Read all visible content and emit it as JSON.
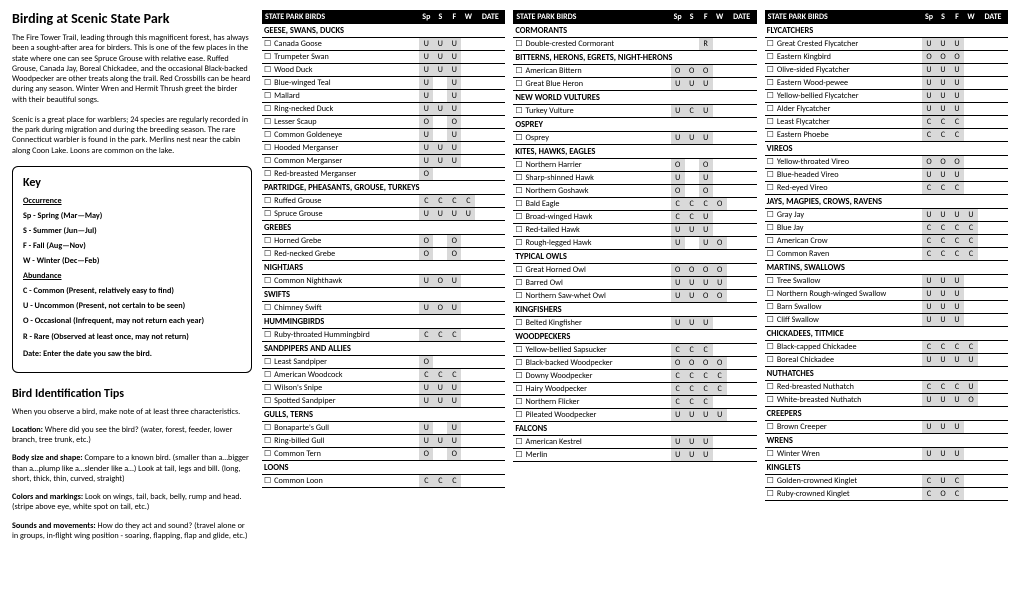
{
  "title": "Birding at Scenic State Park",
  "intro1": "The Fire Tower Trail, leading through this magnificent forest, has always been a sought-after area for birders. This is one of the few places in the state where one can see Spruce Grouse with relative ease. Ruffed Grouse, Canada Jay, Boreal Chickadee, and the occasional Black-backed Woodpecker are other treats along the trail. Red Crossbills can be heard during any season. Winter Wren and Hermit Thrush greet the birder with their beautiful songs.",
  "intro2": "Scenic is a great place for warblers; 24 species are regularly recorded in the park during migration and during the breeding season. The rare Connecticut warbler is found in the park. Merlins nest near the cabin along Coon Lake. Loons are common on the lake.",
  "key": {
    "title": "Key",
    "occ_h": "Occurrence",
    "occ": [
      "Sp - Spring (Mar—May)",
      "S  - Summer (Jun—Jul)",
      "F  - Fall (Aug—Nov)",
      "W - Winter (Dec—Feb)"
    ],
    "ab_h": "Abundance",
    "ab": [
      "C - Common (Present, relatively easy to find)",
      "U - Uncommon (Present, not certain to be seen)",
      "O - Occasional (Infrequent, may not return each year)",
      "R - Rare (Observed at least once, may not return)"
    ],
    "date": "Date: Enter the date you saw the bird."
  },
  "tips": {
    "title": "Bird Identification Tips",
    "p1": "When you observe a bird, make note of at least three characteristics.",
    "loc_h": "Location:",
    "loc": " Where did you see the bird? (water, forest, feeder, lower branch, tree trunk, etc.)",
    "body_h": "Body size and shape:",
    "body": " Compare to a known bird. (smaller than a…bigger than a…plump like a…slender like a…) Look at tail, legs and bill. (long, short, thick, thin, curved, straight)",
    "color_h": "Colors and markings:",
    "color": " Look on wings, tail, back, belly, rump and head. (stripe above eye, white spot on tail, etc.)",
    "sound_h": "Sounds and movements:",
    "sound": " How do they act and sound? (travel alone or in groups, in-flight wing position - soaring, flapping, flap and glide, etc.)"
  },
  "header": {
    "name": "STATE PARK BIRDS",
    "cols": [
      "Sp",
      "S",
      "F",
      "W"
    ],
    "date": "DATE"
  },
  "columns": [
    [
      {
        "g": "GEESE, SWANS, DUCKS"
      },
      {
        "n": "Canada Goose",
        "c": [
          "U",
          "U",
          "U",
          ""
        ]
      },
      {
        "n": "Trumpeter Swan",
        "c": [
          "U",
          "U",
          "U",
          ""
        ]
      },
      {
        "n": "Wood Duck",
        "c": [
          "U",
          "U",
          "U",
          ""
        ]
      },
      {
        "n": "Blue-winged Teal",
        "c": [
          "U",
          "",
          "U",
          ""
        ]
      },
      {
        "n": "Mallard",
        "c": [
          "U",
          "",
          "U",
          ""
        ]
      },
      {
        "n": "Ring-necked Duck",
        "c": [
          "U",
          "U",
          "U",
          ""
        ]
      },
      {
        "n": "Lesser Scaup",
        "c": [
          "O",
          "",
          "O",
          ""
        ]
      },
      {
        "n": "Common Goldeneye",
        "c": [
          "U",
          "",
          "U",
          ""
        ]
      },
      {
        "n": "Hooded Merganser",
        "c": [
          "U",
          "U",
          "U",
          ""
        ]
      },
      {
        "n": "Common Merganser",
        "c": [
          "U",
          "U",
          "U",
          ""
        ]
      },
      {
        "n": "Red-breasted Merganser",
        "c": [
          "O",
          "",
          "",
          ""
        ]
      },
      {
        "g": "PARTRIDGE, PHEASANTS, GROUSE, TURKEYS"
      },
      {
        "n": "Ruffed Grouse",
        "c": [
          "C",
          "C",
          "C",
          "C"
        ]
      },
      {
        "n": "Spruce Grouse",
        "c": [
          "U",
          "U",
          "U",
          "U"
        ]
      },
      {
        "g": "GREBES"
      },
      {
        "n": "Horned Grebe",
        "c": [
          "O",
          "",
          "O",
          ""
        ]
      },
      {
        "n": "Red-necked Grebe",
        "c": [
          "O",
          "",
          "O",
          ""
        ]
      },
      {
        "g": "NIGHTJARS"
      },
      {
        "n": "Common Nighthawk",
        "c": [
          "U",
          "O",
          "U",
          ""
        ]
      },
      {
        "g": "SWIFTS"
      },
      {
        "n": "Chimney Swift",
        "c": [
          "U",
          "O",
          "U",
          ""
        ]
      },
      {
        "g": "HUMMINGBIRDS"
      },
      {
        "n": "Ruby-throated Hummingbird",
        "c": [
          "C",
          "C",
          "C",
          ""
        ]
      },
      {
        "g": "SANDPIPERS AND ALLIES"
      },
      {
        "n": "Least Sandpiper",
        "c": [
          "O",
          "",
          "",
          ""
        ]
      },
      {
        "n": "American Woodcock",
        "c": [
          "C",
          "C",
          "C",
          ""
        ]
      },
      {
        "n": "Wilson's Snipe",
        "c": [
          "U",
          "U",
          "U",
          ""
        ]
      },
      {
        "n": "Spotted Sandpiper",
        "c": [
          "U",
          "U",
          "U",
          ""
        ]
      },
      {
        "g": "GULLS, TERNS"
      },
      {
        "n": "Bonaparte's Gull",
        "c": [
          "U",
          "",
          "U",
          ""
        ]
      },
      {
        "n": "Ring-billed Gull",
        "c": [
          "U",
          "U",
          "U",
          ""
        ]
      },
      {
        "n": "Common Tern",
        "c": [
          "O",
          "",
          "O",
          ""
        ]
      },
      {
        "g": "LOONS"
      },
      {
        "n": "Common Loon",
        "c": [
          "C",
          "C",
          "C",
          ""
        ]
      }
    ],
    [
      {
        "g": "CORMORANTS"
      },
      {
        "n": "Double-crested Cormorant",
        "c": [
          "",
          "",
          "R",
          ""
        ]
      },
      {
        "g": "BITTERNS, HERONS, EGRETS, NIGHT-HERONS"
      },
      {
        "n": "American Bittern",
        "c": [
          "O",
          "O",
          "O",
          ""
        ]
      },
      {
        "n": "Great Blue Heron",
        "c": [
          "U",
          "U",
          "U",
          ""
        ]
      },
      {
        "g": "NEW WORLD VULTURES"
      },
      {
        "n": "Turkey Vulture",
        "c": [
          "U",
          "C",
          "U",
          ""
        ]
      },
      {
        "g": "OSPREY"
      },
      {
        "n": "Osprey",
        "c": [
          "U",
          "U",
          "U",
          ""
        ]
      },
      {
        "g": "KITES, HAWKS, EAGLES"
      },
      {
        "n": "Northern Harrier",
        "c": [
          "O",
          "",
          "O",
          ""
        ]
      },
      {
        "n": "Sharp-shinned Hawk",
        "c": [
          "U",
          "",
          "U",
          ""
        ]
      },
      {
        "n": "Northern Goshawk",
        "c": [
          "O",
          "",
          "O",
          ""
        ]
      },
      {
        "n": "Bald Eagle",
        "c": [
          "C",
          "C",
          "C",
          "O"
        ]
      },
      {
        "n": "Broad-winged Hawk",
        "c": [
          "C",
          "C",
          "U",
          ""
        ]
      },
      {
        "n": "Red-tailed Hawk",
        "c": [
          "U",
          "U",
          "U",
          ""
        ]
      },
      {
        "n": "Rough-legged Hawk",
        "c": [
          "U",
          "",
          "U",
          "O"
        ]
      },
      {
        "g": "TYPICAL OWLS"
      },
      {
        "n": "Great Horned Owl",
        "c": [
          "O",
          "O",
          "O",
          "O"
        ]
      },
      {
        "n": "Barred Owl",
        "c": [
          "U",
          "U",
          "U",
          "U"
        ]
      },
      {
        "n": "Northern Saw-whet Owl",
        "c": [
          "U",
          "U",
          "O",
          "O"
        ]
      },
      {
        "g": "KINGFISHERS"
      },
      {
        "n": "Belted Kingfisher",
        "c": [
          "U",
          "U",
          "U",
          ""
        ]
      },
      {
        "g": "WOODPECKERS"
      },
      {
        "n": "Yellow-bellied Sapsucker",
        "c": [
          "C",
          "C",
          "C",
          ""
        ]
      },
      {
        "n": "Black-backed Woodpecker",
        "c": [
          "O",
          "O",
          "O",
          "O"
        ]
      },
      {
        "n": "Downy Woodpecker",
        "c": [
          "C",
          "C",
          "C",
          "C"
        ]
      },
      {
        "n": "Hairy Woodpecker",
        "c": [
          "C",
          "C",
          "C",
          "C"
        ]
      },
      {
        "n": "Northern Flicker",
        "c": [
          "C",
          "C",
          "C",
          ""
        ]
      },
      {
        "n": "Pileated Woodpecker",
        "c": [
          "U",
          "U",
          "U",
          "U"
        ]
      },
      {
        "g": "FALCONS"
      },
      {
        "n": "American Kestrel",
        "c": [
          "U",
          "U",
          "U",
          ""
        ]
      },
      {
        "n": "Merlin",
        "c": [
          "U",
          "U",
          "U",
          ""
        ]
      }
    ],
    [
      {
        "g": "FLYCATCHERS"
      },
      {
        "n": "Great Crested Flycatcher",
        "c": [
          "U",
          "U",
          "U",
          ""
        ]
      },
      {
        "n": "Eastern Kingbird",
        "c": [
          "O",
          "O",
          "O",
          ""
        ]
      },
      {
        "n": "Olive-sided Flycatcher",
        "c": [
          "U",
          "U",
          "U",
          ""
        ]
      },
      {
        "n": "Eastern Wood-pewee",
        "c": [
          "U",
          "U",
          "U",
          ""
        ]
      },
      {
        "n": "Yellow-bellied Flycatcher",
        "c": [
          "U",
          "U",
          "U",
          ""
        ]
      },
      {
        "n": "Alder Flycatcher",
        "c": [
          "U",
          "U",
          "U",
          ""
        ]
      },
      {
        "n": "Least Flycatcher",
        "c": [
          "C",
          "C",
          "C",
          ""
        ]
      },
      {
        "n": "Eastern Phoebe",
        "c": [
          "C",
          "C",
          "C",
          ""
        ]
      },
      {
        "g": "VIREOS"
      },
      {
        "n": "Yellow-throated Vireo",
        "c": [
          "O",
          "O",
          "O",
          ""
        ]
      },
      {
        "n": "Blue-headed Vireo",
        "c": [
          "U",
          "U",
          "U",
          ""
        ]
      },
      {
        "n": "Red-eyed Vireo",
        "c": [
          "C",
          "C",
          "C",
          ""
        ]
      },
      {
        "g": "JAYS, MAGPIES, CROWS, RAVENS"
      },
      {
        "n": "Gray Jay",
        "c": [
          "U",
          "U",
          "U",
          "U"
        ]
      },
      {
        "n": "Blue Jay",
        "c": [
          "C",
          "C",
          "C",
          "C"
        ]
      },
      {
        "n": "American Crow",
        "c": [
          "C",
          "C",
          "C",
          "C"
        ]
      },
      {
        "n": "Common Raven",
        "c": [
          "C",
          "C",
          "C",
          "C"
        ]
      },
      {
        "g": "MARTINS, SWALLOWS"
      },
      {
        "n": "Tree Swallow",
        "c": [
          "U",
          "U",
          "U",
          ""
        ]
      },
      {
        "n": "Northern Rough-winged Swallow",
        "c": [
          "U",
          "U",
          "U",
          ""
        ]
      },
      {
        "n": "Barn Swallow",
        "c": [
          "U",
          "U",
          "U",
          ""
        ]
      },
      {
        "n": "Cliff Swallow",
        "c": [
          "U",
          "U",
          "U",
          ""
        ]
      },
      {
        "g": "CHICKADEES, TITMICE"
      },
      {
        "n": "Black-capped Chickadee",
        "c": [
          "C",
          "C",
          "C",
          "C"
        ]
      },
      {
        "n": "Boreal Chickadee",
        "c": [
          "U",
          "U",
          "U",
          "U"
        ]
      },
      {
        "g": "NUTHATCHES"
      },
      {
        "n": "Red-breasted Nuthatch",
        "c": [
          "C",
          "C",
          "C",
          "U"
        ]
      },
      {
        "n": "White-breasted Nuthatch",
        "c": [
          "U",
          "U",
          "U",
          "O"
        ]
      },
      {
        "g": "CREEPERS"
      },
      {
        "n": "Brown Creeper",
        "c": [
          "U",
          "U",
          "U",
          ""
        ]
      },
      {
        "g": "WRENS"
      },
      {
        "n": "Winter Wren",
        "c": [
          "U",
          "U",
          "U",
          ""
        ]
      },
      {
        "g": "KINGLETS"
      },
      {
        "n": "Golden-crowned Kinglet",
        "c": [
          "C",
          "U",
          "C",
          ""
        ]
      },
      {
        "n": "Ruby-crowned Kinglet",
        "c": [
          "C",
          "O",
          "C",
          ""
        ]
      }
    ]
  ]
}
